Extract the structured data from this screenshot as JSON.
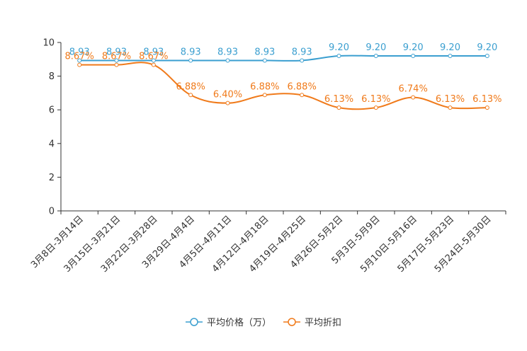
{
  "chart_data": {
    "type": "line",
    "title": "",
    "xlabel": "",
    "ylabel": "",
    "ylim": [
      0,
      10
    ],
    "yticks": [
      0,
      2,
      4,
      6,
      8,
      10
    ],
    "grid": false,
    "legend_position": "bottom-center",
    "categories": [
      "3月8日-3月14日",
      "3月15日-3月21日",
      "3月22日-3月28日",
      "3月29日-4月4日",
      "4月5日-4月11日",
      "4月12日-4月18日",
      "4月19日-4月25日",
      "4月26日-5月2日",
      "5月3日-5月9日",
      "5月10日-5月16日",
      "5月17日-5月23日",
      "5月24日-5月30日"
    ],
    "series": [
      {
        "name": "平均价格（万）",
        "color": "#3b9fd0",
        "values": [
          8.93,
          8.93,
          8.93,
          8.93,
          8.93,
          8.93,
          8.93,
          9.2,
          9.2,
          9.2,
          9.2,
          9.2
        ],
        "labels": [
          "8.93",
          "8.93",
          "8.93",
          "8.93",
          "8.93",
          "8.93",
          "8.93",
          "9.20",
          "9.20",
          "9.20",
          "9.20",
          "9.20"
        ]
      },
      {
        "name": "平均折扣",
        "color": "#f07a1a",
        "values": [
          8.67,
          8.67,
          8.67,
          6.88,
          6.4,
          6.88,
          6.88,
          6.13,
          6.13,
          6.74,
          6.13,
          6.13
        ],
        "labels": [
          "8.67%",
          "8.67%",
          "8.67%",
          "6.88%",
          "6.40%",
          "6.88%",
          "6.88%",
          "6.13%",
          "6.13%",
          "6.74%",
          "6.13%",
          "6.13%"
        ]
      }
    ]
  }
}
